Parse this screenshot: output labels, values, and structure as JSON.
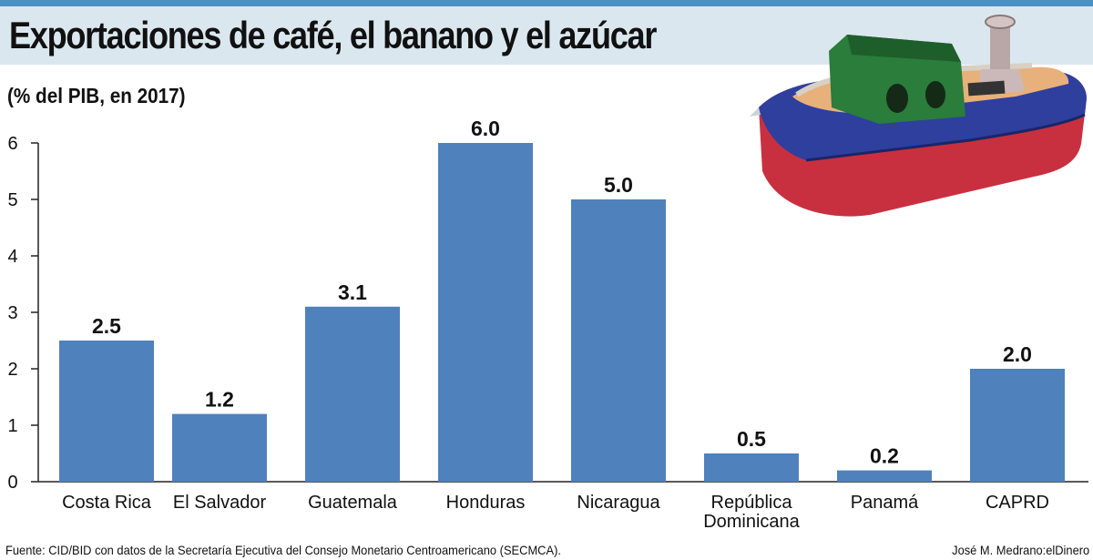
{
  "header": {
    "title": "Exportaciones de café, el banano y el azúcar",
    "subtitle": "(% del PIB, en 2017)"
  },
  "footer": {
    "source": "Fuente: CID/BID con datos de la Secretaría Ejecutiva del Consejo Monetario Centroamericano (SECMCA).",
    "credit": "José M. Medrano:elDinero"
  },
  "colors": {
    "bar": "#4f81bd",
    "header_bg": "#dbe7ef",
    "top_bar": "#4a90c4"
  },
  "illustration": {
    "icon": "toy-boat-icon"
  },
  "chart_data": {
    "type": "bar",
    "title": "Exportaciones de café, el banano y el azúcar",
    "subtitle": "(% del PIB, en 2017)",
    "categories": [
      "Costa Rica",
      "El Salvador",
      "Guatemala",
      "Honduras",
      "Nicaragua",
      "República Dominicana",
      "Panamá",
      "CAPRD"
    ],
    "category_lines": [
      [
        "Costa Rica"
      ],
      [
        "El Salvador"
      ],
      [
        "Guatemala"
      ],
      [
        "Honduras"
      ],
      [
        "Nicaragua"
      ],
      [
        "República",
        "Dominicana"
      ],
      [
        "Panamá"
      ],
      [
        "CAPRD"
      ]
    ],
    "values": [
      2.5,
      1.2,
      3.1,
      6.0,
      5.0,
      0.5,
      0.2,
      2.0
    ],
    "data_labels": [
      "2.5",
      "1.2",
      "3.1",
      "6.0",
      "5.0",
      "0.5",
      "0.2",
      "2.0"
    ],
    "y_ticks": [
      0,
      1,
      2,
      3,
      4,
      5,
      6
    ],
    "ylim": [
      0,
      6
    ],
    "xlabel": "",
    "ylabel": "",
    "grid": false,
    "legend": "none"
  }
}
